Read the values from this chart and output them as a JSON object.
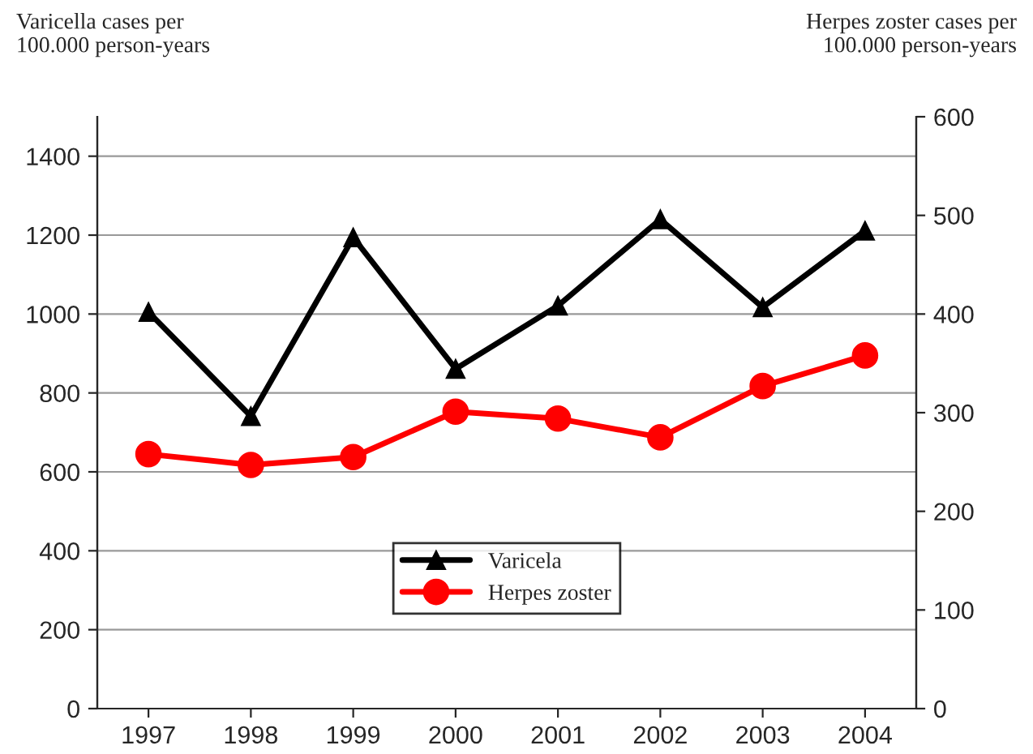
{
  "chart_data": {
    "type": "line",
    "ylabel": "Varicella cases per\n100.000 person-years",
    "y2label": "Herpes zoster cases per\n100.000 person-years",
    "categories": [
      "1997",
      "1998",
      "1999",
      "2000",
      "2001",
      "2002",
      "2003",
      "2004"
    ],
    "series": [
      {
        "name": "Varicela",
        "color": "#000000",
        "marker": "triangle",
        "values": [
          1005,
          741,
          1194,
          861,
          1021,
          1240,
          1017,
          1211
        ]
      },
      {
        "name": "Herpes zoster",
        "color": "#ff0000",
        "marker": "circle",
        "axis": "y2",
        "values": [
          258,
          247,
          255,
          301,
          294,
          275,
          327,
          358
        ]
      }
    ],
    "ylim": [
      0,
      1500
    ],
    "yticks": [
      0,
      200,
      400,
      600,
      800,
      1000,
      1200,
      1400
    ],
    "y2lim": [
      0,
      600
    ],
    "y2ticks": [
      0,
      100,
      200,
      300,
      400,
      500,
      600
    ],
    "grid": "y",
    "legend": "bottom",
    "line_style": "solid"
  }
}
